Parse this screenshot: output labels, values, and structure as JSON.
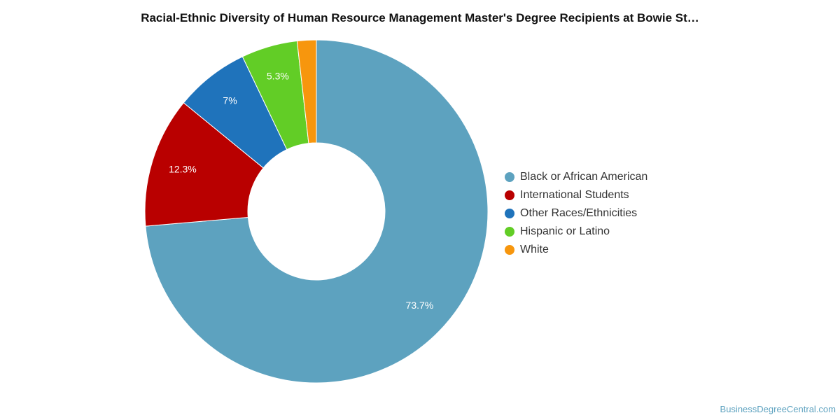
{
  "title": "Racial-Ethnic Diversity of Human Resource Management Master's Degree Recipients at Bowie St…",
  "watermark": "BusinessDegreeCentral.com",
  "chart_data": {
    "type": "pie",
    "donut": true,
    "legend_position": "right",
    "categories": [
      "Black or African American",
      "International Students",
      "Other Races/Ethnicities",
      "Hispanic or Latino",
      "White"
    ],
    "values": [
      73.7,
      12.3,
      7.0,
      5.3,
      1.8
    ],
    "labels": [
      "73.7%",
      "12.3%",
      "7%",
      "5.3%",
      ""
    ],
    "colors": [
      "#5da2bf",
      "#b90000",
      "#1f73bb",
      "#62cd26",
      "#f7960d"
    ],
    "slice_order": [
      0,
      1,
      2,
      3,
      4
    ]
  }
}
